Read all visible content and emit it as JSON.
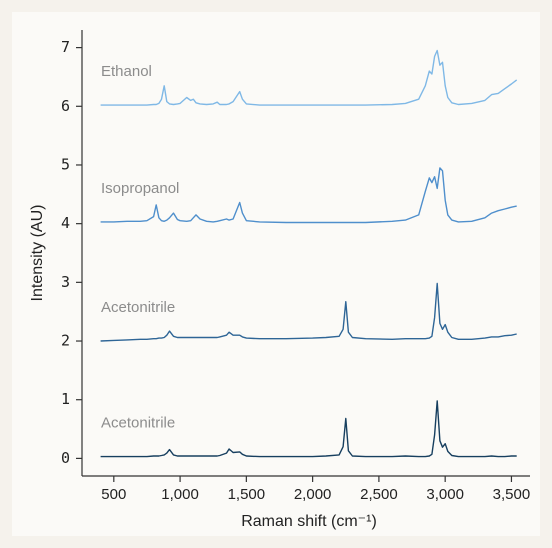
{
  "chart_data": {
    "type": "line",
    "xlabel": "Raman shift (cm⁻¹)",
    "ylabel": "Intensity (AU)",
    "xlim": [
      260,
      3640
    ],
    "ylim": [
      -0.3,
      7.3
    ],
    "xticks": [
      500,
      {
        "value": 1000,
        "label": "1,000"
      },
      {
        "value": 1500,
        "label": "1,500"
      },
      {
        "value": 2000,
        "label": "2,000"
      },
      {
        "value": 2500,
        "label": "2,500"
      },
      {
        "value": 3000,
        "label": "3,000"
      },
      {
        "value": 3500,
        "label": "3,500"
      }
    ],
    "yticks": [
      0,
      1,
      2,
      3,
      4,
      5,
      6,
      7
    ],
    "x": [
      400,
      500,
      600,
      700,
      750,
      800,
      820,
      840,
      860,
      880,
      900,
      920,
      950,
      980,
      1000,
      1050,
      1080,
      1100,
      1120,
      1150,
      1200,
      1250,
      1280,
      1300,
      1350,
      1370,
      1400,
      1450,
      1470,
      1500,
      1600,
      1800,
      2000,
      2100,
      2200,
      2230,
      2250,
      2270,
      2300,
      2400,
      2600,
      2700,
      2800,
      2850,
      2880,
      2900,
      2920,
      2940,
      2960,
      2980,
      3000,
      3020,
      3050,
      3100,
      3200,
      3300,
      3350,
      3400,
      3450,
      3500,
      3540
    ],
    "series": [
      {
        "name": "Ethanol",
        "color": "#7fb8e6",
        "values": [
          6.02,
          6.02,
          6.02,
          6.02,
          6.02,
          6.03,
          6.03,
          6.05,
          6.12,
          6.35,
          6.08,
          6.04,
          6.03,
          6.04,
          6.05,
          6.15,
          6.1,
          6.12,
          6.06,
          6.04,
          6.03,
          6.04,
          6.07,
          6.03,
          6.03,
          6.04,
          6.08,
          6.25,
          6.12,
          6.04,
          6.02,
          6.02,
          6.02,
          6.02,
          6.02,
          6.02,
          6.02,
          6.02,
          6.02,
          6.02,
          6.03,
          6.05,
          6.12,
          6.35,
          6.6,
          6.55,
          6.85,
          6.95,
          6.7,
          6.75,
          6.35,
          6.15,
          6.06,
          6.03,
          6.05,
          6.1,
          6.2,
          6.22,
          6.3,
          6.38,
          6.45
        ]
      },
      {
        "name": "Isopropanol",
        "color": "#4f8fcc",
        "values": [
          4.03,
          4.03,
          4.04,
          4.04,
          4.05,
          4.12,
          4.32,
          4.1,
          4.05,
          4.04,
          4.06,
          4.1,
          4.18,
          4.07,
          4.05,
          4.04,
          4.05,
          4.1,
          4.15,
          4.08,
          4.04,
          4.03,
          4.04,
          4.05,
          4.08,
          4.06,
          4.08,
          4.36,
          4.18,
          4.05,
          4.03,
          4.02,
          4.02,
          4.02,
          4.02,
          4.02,
          4.02,
          4.02,
          4.02,
          4.02,
          4.04,
          4.06,
          4.15,
          4.55,
          4.78,
          4.7,
          4.8,
          4.6,
          4.95,
          4.9,
          4.4,
          4.15,
          4.06,
          4.03,
          4.04,
          4.1,
          4.18,
          4.22,
          4.25,
          4.28,
          4.3
        ]
      },
      {
        "name": "Acetonitrile",
        "color": "#2e6596",
        "values": [
          2.0,
          2.01,
          2.02,
          2.03,
          2.03,
          2.04,
          2.04,
          2.05,
          2.05,
          2.06,
          2.1,
          2.17,
          2.08,
          2.06,
          2.06,
          2.06,
          2.06,
          2.06,
          2.06,
          2.06,
          2.06,
          2.06,
          2.06,
          2.07,
          2.1,
          2.15,
          2.1,
          2.1,
          2.07,
          2.05,
          2.04,
          2.04,
          2.05,
          2.06,
          2.08,
          2.2,
          2.67,
          2.15,
          2.06,
          2.04,
          2.03,
          2.04,
          2.04,
          2.04,
          2.05,
          2.08,
          2.4,
          2.98,
          2.3,
          2.2,
          2.28,
          2.15,
          2.06,
          2.03,
          2.03,
          2.05,
          2.07,
          2.07,
          2.09,
          2.1,
          2.12
        ]
      },
      {
        "name": "Acetonitrile",
        "color": "#173f5f",
        "values": [
          0.03,
          0.03,
          0.03,
          0.03,
          0.03,
          0.04,
          0.04,
          0.04,
          0.05,
          0.06,
          0.09,
          0.15,
          0.06,
          0.04,
          0.04,
          0.04,
          0.04,
          0.04,
          0.04,
          0.04,
          0.04,
          0.04,
          0.04,
          0.05,
          0.09,
          0.16,
          0.1,
          0.11,
          0.07,
          0.04,
          0.03,
          0.03,
          0.03,
          0.04,
          0.06,
          0.2,
          0.68,
          0.13,
          0.04,
          0.03,
          0.03,
          0.04,
          0.03,
          0.03,
          0.04,
          0.07,
          0.4,
          0.98,
          0.3,
          0.19,
          0.25,
          0.12,
          0.05,
          0.03,
          0.03,
          0.03,
          0.04,
          0.03,
          0.03,
          0.04,
          0.04
        ]
      }
    ]
  }
}
